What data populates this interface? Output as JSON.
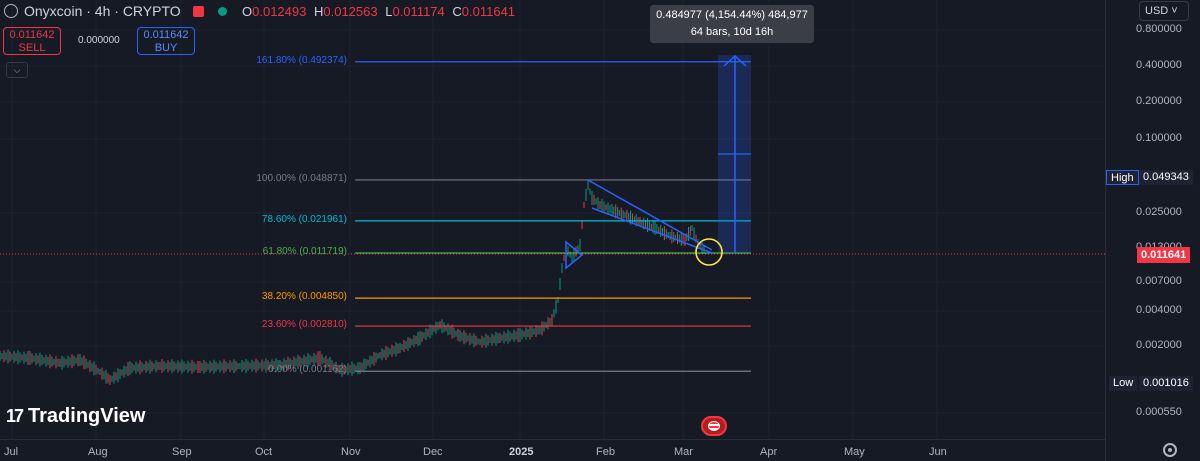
{
  "header": {
    "symbol": "Onyxcoin · 4h · CRYPTO",
    "ohlc": {
      "o_label": "O",
      "o": "0.012493",
      "h_label": "H",
      "h": "0.012563",
      "l_label": "L",
      "l": "0.011174",
      "c_label": "C",
      "c": "0.011641"
    }
  },
  "trade": {
    "sell_price": "0.011642",
    "sell_label": "SELL",
    "spread": "0.000000",
    "buy_price": "0.011642",
    "buy_label": "BUY"
  },
  "measure": {
    "line1": "0.484977 (4,154.44%) 484,977",
    "line2": "64 bars, 10d 16h"
  },
  "currency": "USD",
  "fib_levels": [
    {
      "label": "161.80% (0.492374)",
      "price": 0.492374,
      "color": "#2962ff"
    },
    {
      "label": "100.00% (0.048871)",
      "price": 0.048871,
      "color": "#787b86"
    },
    {
      "label": "78.60% (0.021961)",
      "price": 0.021961,
      "color": "#00bcd4"
    },
    {
      "label": "61.80% (0.011719)",
      "price": 0.011719,
      "color": "#4caf50"
    },
    {
      "label": "38.20% (0.004850)",
      "price": 0.00485,
      "color": "#ff9800"
    },
    {
      "label": "23.60% (0.002810)",
      "price": 0.00281,
      "color": "#f23645"
    },
    {
      "label": "0.00% (0.001162)",
      "price": 0.001162,
      "color": "#787b86"
    }
  ],
  "price_ticks": [
    "0.800000",
    "0.400000",
    "0.200000",
    "0.100000",
    "0.025000",
    "0.013000",
    "0.007000",
    "0.004000",
    "0.002000",
    "0.000550"
  ],
  "price_tags": {
    "high_label": "High",
    "high_value": "0.049343",
    "low_label": "Low",
    "low_value": "0.001016",
    "last_value": "0.011641"
  },
  "time_labels": [
    "Jul",
    "Aug",
    "Sep",
    "Oct",
    "Nov",
    "Dec",
    "2025",
    "Feb",
    "Mar",
    "Apr",
    "May",
    "Jun"
  ],
  "brand": "TradingView",
  "colors": {
    "up": "#089981",
    "down": "#f23645",
    "bg": "#161a25",
    "accent": "#2962ff"
  },
  "icons": {
    "symbol_logo": "coin-logo-icon",
    "news": "us-flag-news-icon",
    "settings": "gear-icon"
  }
}
